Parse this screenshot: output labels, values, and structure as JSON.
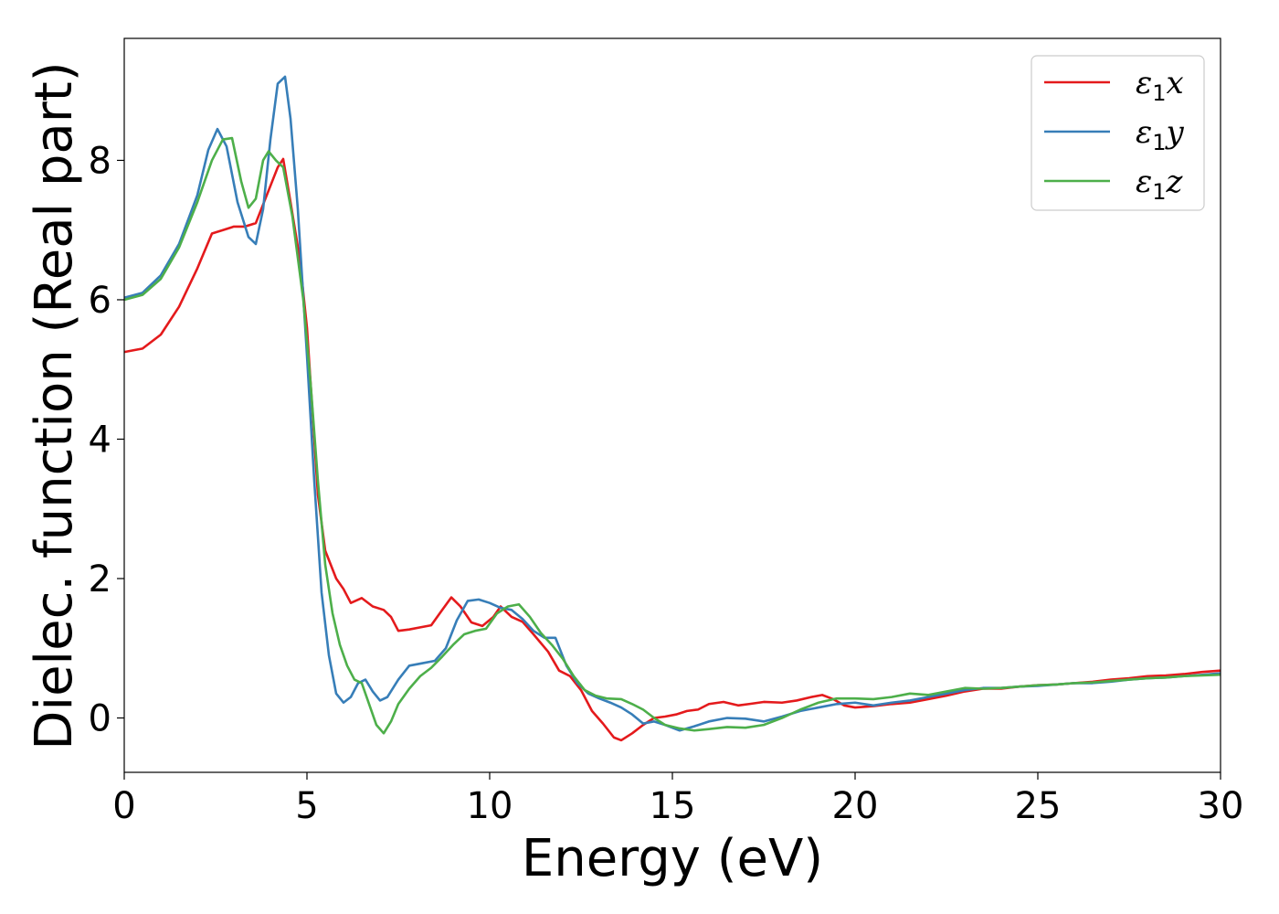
{
  "chart_data": {
    "type": "line",
    "xlabel": "Energy (eV)",
    "ylabel": "Dielec. function (Real part)",
    "xlim": [
      0,
      30
    ],
    "ylim": [
      -0.78,
      9.75
    ],
    "xticks": [
      0,
      5,
      10,
      15,
      20,
      25,
      30
    ],
    "yticks": [
      0,
      2,
      4,
      6,
      8
    ],
    "grid": false,
    "legend_position": "top-right",
    "series": [
      {
        "name": "ε1x",
        "legend": {
          "symbol": "ε",
          "subscript": "1",
          "var": "x"
        },
        "color": "#e41a1c",
        "points": [
          [
            0,
            5.25
          ],
          [
            0.5,
            5.3
          ],
          [
            1.0,
            5.5
          ],
          [
            1.5,
            5.9
          ],
          [
            2.0,
            6.45
          ],
          [
            2.4,
            6.95
          ],
          [
            2.7,
            7.0
          ],
          [
            3.0,
            7.05
          ],
          [
            3.3,
            7.05
          ],
          [
            3.6,
            7.1
          ],
          [
            3.9,
            7.5
          ],
          [
            4.2,
            7.9
          ],
          [
            4.35,
            8.02
          ],
          [
            4.55,
            7.4
          ],
          [
            4.8,
            6.6
          ],
          [
            5.0,
            5.6
          ],
          [
            5.15,
            4.4
          ],
          [
            5.3,
            3.2
          ],
          [
            5.5,
            2.4
          ],
          [
            5.8,
            2.0
          ],
          [
            6.0,
            1.85
          ],
          [
            6.2,
            1.65
          ],
          [
            6.5,
            1.72
          ],
          [
            6.8,
            1.6
          ],
          [
            7.1,
            1.55
          ],
          [
            7.3,
            1.45
          ],
          [
            7.5,
            1.25
          ],
          [
            7.8,
            1.27
          ],
          [
            8.1,
            1.3
          ],
          [
            8.4,
            1.33
          ],
          [
            8.7,
            1.55
          ],
          [
            8.95,
            1.73
          ],
          [
            9.2,
            1.6
          ],
          [
            9.5,
            1.37
          ],
          [
            9.8,
            1.32
          ],
          [
            10.1,
            1.45
          ],
          [
            10.3,
            1.6
          ],
          [
            10.6,
            1.45
          ],
          [
            10.9,
            1.38
          ],
          [
            11.2,
            1.2
          ],
          [
            11.6,
            0.95
          ],
          [
            11.9,
            0.68
          ],
          [
            12.2,
            0.6
          ],
          [
            12.5,
            0.4
          ],
          [
            12.8,
            0.1
          ],
          [
            13.1,
            -0.08
          ],
          [
            13.4,
            -0.28
          ],
          [
            13.6,
            -0.32
          ],
          [
            13.9,
            -0.22
          ],
          [
            14.2,
            -0.1
          ],
          [
            14.5,
            0.0
          ],
          [
            14.8,
            0.02
          ],
          [
            15.1,
            0.05
          ],
          [
            15.4,
            0.1
          ],
          [
            15.7,
            0.12
          ],
          [
            16.0,
            0.2
          ],
          [
            16.4,
            0.23
          ],
          [
            16.8,
            0.18
          ],
          [
            17.1,
            0.2
          ],
          [
            17.5,
            0.23
          ],
          [
            18.0,
            0.22
          ],
          [
            18.4,
            0.25
          ],
          [
            18.8,
            0.3
          ],
          [
            19.1,
            0.33
          ],
          [
            19.4,
            0.27
          ],
          [
            19.7,
            0.18
          ],
          [
            20.0,
            0.15
          ],
          [
            20.5,
            0.17
          ],
          [
            21.0,
            0.2
          ],
          [
            21.5,
            0.22
          ],
          [
            22.0,
            0.27
          ],
          [
            22.5,
            0.32
          ],
          [
            23.0,
            0.38
          ],
          [
            23.5,
            0.42
          ],
          [
            24.0,
            0.42
          ],
          [
            24.5,
            0.45
          ],
          [
            25.0,
            0.47
          ],
          [
            25.5,
            0.48
          ],
          [
            26.0,
            0.5
          ],
          [
            26.5,
            0.52
          ],
          [
            27.0,
            0.55
          ],
          [
            27.5,
            0.57
          ],
          [
            28.0,
            0.6
          ],
          [
            28.5,
            0.61
          ],
          [
            29.0,
            0.63
          ],
          [
            29.5,
            0.66
          ],
          [
            30.0,
            0.68
          ]
        ]
      },
      {
        "name": "ε1y",
        "legend": {
          "symbol": "ε",
          "subscript": "1",
          "var": "y"
        },
        "color": "#377eb8",
        "points": [
          [
            0,
            6.03
          ],
          [
            0.5,
            6.1
          ],
          [
            1.0,
            6.35
          ],
          [
            1.5,
            6.8
          ],
          [
            2.0,
            7.5
          ],
          [
            2.3,
            8.15
          ],
          [
            2.55,
            8.45
          ],
          [
            2.8,
            8.2
          ],
          [
            3.1,
            7.4
          ],
          [
            3.4,
            6.9
          ],
          [
            3.6,
            6.8
          ],
          [
            3.8,
            7.3
          ],
          [
            4.0,
            8.3
          ],
          [
            4.2,
            9.1
          ],
          [
            4.4,
            9.2
          ],
          [
            4.55,
            8.6
          ],
          [
            4.75,
            7.3
          ],
          [
            5.0,
            5.2
          ],
          [
            5.2,
            3.4
          ],
          [
            5.4,
            1.8
          ],
          [
            5.6,
            0.9
          ],
          [
            5.8,
            0.35
          ],
          [
            6.0,
            0.22
          ],
          [
            6.2,
            0.3
          ],
          [
            6.4,
            0.5
          ],
          [
            6.6,
            0.55
          ],
          [
            6.8,
            0.38
          ],
          [
            7.0,
            0.25
          ],
          [
            7.2,
            0.3
          ],
          [
            7.5,
            0.55
          ],
          [
            7.8,
            0.75
          ],
          [
            8.1,
            0.78
          ],
          [
            8.5,
            0.82
          ],
          [
            8.8,
            1.0
          ],
          [
            9.1,
            1.4
          ],
          [
            9.4,
            1.68
          ],
          [
            9.7,
            1.7
          ],
          [
            10.0,
            1.65
          ],
          [
            10.3,
            1.58
          ],
          [
            10.6,
            1.55
          ],
          [
            10.9,
            1.42
          ],
          [
            11.2,
            1.25
          ],
          [
            11.5,
            1.15
          ],
          [
            11.8,
            1.15
          ],
          [
            12.1,
            0.75
          ],
          [
            12.4,
            0.5
          ],
          [
            12.7,
            0.35
          ],
          [
            13.0,
            0.28
          ],
          [
            13.3,
            0.22
          ],
          [
            13.6,
            0.15
          ],
          [
            13.9,
            0.05
          ],
          [
            14.2,
            -0.08
          ],
          [
            14.5,
            -0.05
          ],
          [
            14.8,
            -0.1
          ],
          [
            15.2,
            -0.18
          ],
          [
            15.6,
            -0.12
          ],
          [
            16.0,
            -0.05
          ],
          [
            16.5,
            0.0
          ],
          [
            17.0,
            -0.01
          ],
          [
            17.5,
            -0.05
          ],
          [
            18.0,
            0.02
          ],
          [
            18.5,
            0.1
          ],
          [
            19.0,
            0.15
          ],
          [
            19.5,
            0.2
          ],
          [
            20.0,
            0.22
          ],
          [
            20.5,
            0.18
          ],
          [
            21.0,
            0.22
          ],
          [
            21.5,
            0.25
          ],
          [
            22.0,
            0.3
          ],
          [
            22.5,
            0.35
          ],
          [
            23.0,
            0.4
          ],
          [
            23.5,
            0.43
          ],
          [
            24.0,
            0.43
          ],
          [
            24.5,
            0.45
          ],
          [
            25.0,
            0.46
          ],
          [
            25.5,
            0.48
          ],
          [
            26.0,
            0.5
          ],
          [
            26.5,
            0.5
          ],
          [
            27.0,
            0.52
          ],
          [
            27.5,
            0.55
          ],
          [
            28.0,
            0.57
          ],
          [
            28.5,
            0.58
          ],
          [
            29.0,
            0.6
          ],
          [
            29.5,
            0.62
          ],
          [
            30.0,
            0.64
          ]
        ]
      },
      {
        "name": "ε1z",
        "legend": {
          "symbol": "ε",
          "subscript": "1",
          "var": "z"
        },
        "color": "#4daf4a",
        "points": [
          [
            0,
            6.0
          ],
          [
            0.5,
            6.07
          ],
          [
            1.0,
            6.3
          ],
          [
            1.5,
            6.75
          ],
          [
            2.0,
            7.4
          ],
          [
            2.4,
            8.0
          ],
          [
            2.7,
            8.3
          ],
          [
            2.95,
            8.32
          ],
          [
            3.2,
            7.7
          ],
          [
            3.4,
            7.32
          ],
          [
            3.6,
            7.45
          ],
          [
            3.8,
            8.0
          ],
          [
            3.95,
            8.13
          ],
          [
            4.15,
            8.0
          ],
          [
            4.35,
            7.9
          ],
          [
            4.6,
            7.2
          ],
          [
            4.9,
            6.0
          ],
          [
            5.1,
            4.8
          ],
          [
            5.3,
            3.4
          ],
          [
            5.5,
            2.2
          ],
          [
            5.7,
            1.5
          ],
          [
            5.9,
            1.05
          ],
          [
            6.1,
            0.75
          ],
          [
            6.3,
            0.55
          ],
          [
            6.5,
            0.5
          ],
          [
            6.7,
            0.2
          ],
          [
            6.9,
            -0.1
          ],
          [
            7.1,
            -0.22
          ],
          [
            7.3,
            -0.05
          ],
          [
            7.5,
            0.2
          ],
          [
            7.8,
            0.42
          ],
          [
            8.1,
            0.6
          ],
          [
            8.4,
            0.72
          ],
          [
            8.7,
            0.88
          ],
          [
            9.0,
            1.05
          ],
          [
            9.3,
            1.2
          ],
          [
            9.6,
            1.25
          ],
          [
            9.9,
            1.28
          ],
          [
            10.2,
            1.5
          ],
          [
            10.5,
            1.6
          ],
          [
            10.8,
            1.63
          ],
          [
            11.1,
            1.45
          ],
          [
            11.4,
            1.22
          ],
          [
            11.7,
            1.05
          ],
          [
            12.0,
            0.85
          ],
          [
            12.3,
            0.6
          ],
          [
            12.6,
            0.4
          ],
          [
            12.9,
            0.32
          ],
          [
            13.2,
            0.28
          ],
          [
            13.6,
            0.27
          ],
          [
            13.9,
            0.2
          ],
          [
            14.2,
            0.12
          ],
          [
            14.5,
            0.0
          ],
          [
            14.8,
            -0.1
          ],
          [
            15.2,
            -0.15
          ],
          [
            15.6,
            -0.18
          ],
          [
            16.0,
            -0.16
          ],
          [
            16.5,
            -0.13
          ],
          [
            17.0,
            -0.14
          ],
          [
            17.5,
            -0.1
          ],
          [
            18.0,
            0.0
          ],
          [
            18.5,
            0.12
          ],
          [
            19.0,
            0.22
          ],
          [
            19.5,
            0.28
          ],
          [
            20.0,
            0.28
          ],
          [
            20.5,
            0.27
          ],
          [
            21.0,
            0.3
          ],
          [
            21.5,
            0.35
          ],
          [
            22.0,
            0.33
          ],
          [
            22.5,
            0.38
          ],
          [
            23.0,
            0.43
          ],
          [
            23.5,
            0.42
          ],
          [
            24.0,
            0.43
          ],
          [
            24.5,
            0.45
          ],
          [
            25.0,
            0.47
          ],
          [
            25.5,
            0.48
          ],
          [
            26.0,
            0.5
          ],
          [
            26.5,
            0.51
          ],
          [
            27.0,
            0.53
          ],
          [
            27.5,
            0.55
          ],
          [
            28.0,
            0.57
          ],
          [
            28.5,
            0.58
          ],
          [
            29.0,
            0.6
          ],
          [
            29.5,
            0.61
          ],
          [
            30.0,
            0.62
          ]
        ]
      }
    ]
  }
}
